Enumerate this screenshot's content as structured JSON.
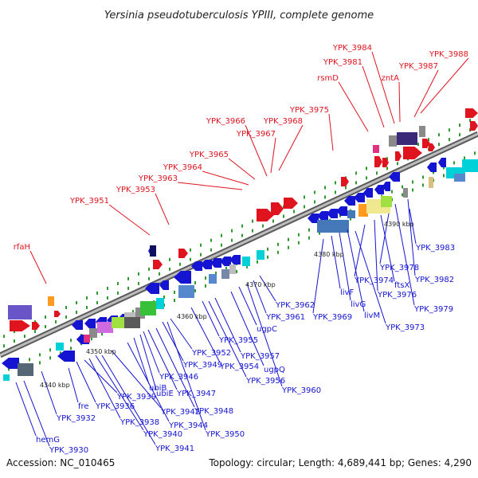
{
  "title": "Yersinia pseudotuberculosis YPIII, complete genome",
  "footer": {
    "accession": "Accession: NC_010465",
    "summary": "Topology: circular; Length: 4,689,441 bp; Genes: 4,290"
  },
  "colors": {
    "forward": "#e0141e",
    "reverse": "#1414d2",
    "backbone": "#9a9a9a"
  },
  "kbp_ticks": [
    "4340 kbp",
    "4350 kbp",
    "4360 kbp",
    "4370 kbp",
    "4380 kbp",
    "4390 kbp"
  ],
  "forward_genes": [
    "rfaH",
    "YPK_3951",
    "YPK_3953",
    "YPK_3963",
    "YPK_3964",
    "YPK_3965",
    "YPK_3967",
    "YPK_3966",
    "YPK_3968",
    "YPK_3975",
    "rsmD",
    "YPK_3981",
    "YPK_3984",
    "zntA",
    "YPK_3987",
    "YPK_3988"
  ],
  "reverse_genes": [
    "hemG",
    "YPK_3930",
    "YPK_3932",
    "fre",
    "YPK_3936",
    "YPK_3939",
    "YPK_3938",
    "YPK_3940",
    "YPK_3941",
    "ubiB",
    "ubiE",
    "YPK_3942",
    "YPK_3944",
    "YPK_3946",
    "YPK_3947",
    "YPK_3948",
    "YPK_3949",
    "YPK_3950",
    "YPK_3952",
    "YPK_3954",
    "YPK_3955",
    "YPK_3956",
    "YPK_3957",
    "ugpQ",
    "ugpC",
    "YPK_3960",
    "YPK_3961",
    "YPK_3962",
    "YPK_3969",
    "livF",
    "livG",
    "livM",
    "YPK_3973",
    "YPK_3974",
    "YPK_3976",
    "ftsX",
    "YPK_3978",
    "YPK_3979",
    "YPK_3982",
    "YPK_3983"
  ]
}
